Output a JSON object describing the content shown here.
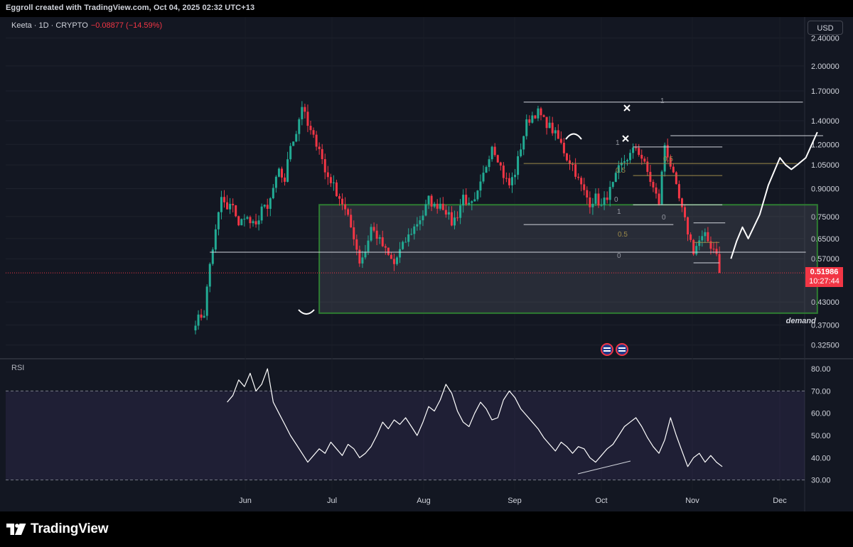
{
  "header": {
    "credit": "Eggroll created with TradingView.com, Oct 04, 2025 02:32 UTC+13"
  },
  "legend": {
    "symbol": "Keeta · 1D · CRYPTO",
    "change": "−0.08877 (−14.59%)"
  },
  "currency_button": "USD",
  "rsi_label": "RSI",
  "brand": {
    "name": "TradingView"
  },
  "colors": {
    "up": "#22ab94",
    "down": "#f23645",
    "background": "#131722",
    "demand_border": "#2e7d32",
    "fib_gold": "#9c8a4a"
  },
  "last_price": {
    "value": "0.51986",
    "countdown": "10:27:44"
  },
  "annotations": {
    "demand": "demand",
    "fib_labels": [
      {
        "text": "1"
      },
      {
        "text": "1"
      },
      {
        "text": "0.5"
      },
      {
        "text": "0.5"
      },
      {
        "text": "0"
      },
      {
        "text": "1"
      },
      {
        "text": "0"
      },
      {
        "text": "0.5"
      },
      {
        "text": "0"
      }
    ]
  },
  "chart_data": [
    {
      "type": "candlestick",
      "title": "",
      "scale": "log",
      "x_ticks": [
        "Jun",
        "Jul",
        "Aug",
        "Sep",
        "Oct",
        "Nov",
        "Dec"
      ],
      "y_ticks": [
        "2.40000",
        "2.00000",
        "1.70000",
        "1.40000",
        "1.20000",
        "1.05000",
        "0.90000",
        "0.75000",
        "0.65000",
        "0.57000",
        "0.43000",
        "0.37000",
        "0.32500"
      ],
      "y_tick_values": [
        2.4,
        2.0,
        1.7,
        1.4,
        1.2,
        1.05,
        0.9,
        0.75,
        0.65,
        0.57,
        0.43,
        0.37,
        0.325
      ],
      "ylim": [
        0.3,
        2.75
      ],
      "close_path": [
        [
          0,
          0.38
        ],
        [
          3,
          0.4
        ],
        [
          5,
          0.55
        ],
        [
          7,
          0.68
        ],
        [
          9,
          0.85
        ],
        [
          11,
          0.78
        ],
        [
          13,
          0.82
        ],
        [
          15,
          0.7
        ],
        [
          17,
          0.76
        ],
        [
          19,
          0.72
        ],
        [
          21,
          0.7
        ],
        [
          23,
          0.8
        ],
        [
          25,
          0.78
        ],
        [
          27,
          0.9
        ],
        [
          29,
          1.0
        ],
        [
          31,
          0.95
        ],
        [
          33,
          1.2
        ],
        [
          35,
          1.3
        ],
        [
          37,
          1.55
        ],
        [
          39,
          1.35
        ],
        [
          41,
          1.25
        ],
        [
          43,
          1.18
        ],
        [
          45,
          1.0
        ],
        [
          47,
          0.95
        ],
        [
          49,
          0.88
        ],
        [
          51,
          0.82
        ],
        [
          53,
          0.74
        ],
        [
          55,
          0.66
        ],
        [
          57,
          0.56
        ],
        [
          59,
          0.6
        ],
        [
          61,
          0.7
        ],
        [
          63,
          0.66
        ],
        [
          65,
          0.62
        ],
        [
          67,
          0.58
        ],
        [
          69,
          0.55
        ],
        [
          71,
          0.6
        ],
        [
          73,
          0.64
        ],
        [
          75,
          0.68
        ],
        [
          77,
          0.72
        ],
        [
          79,
          0.76
        ],
        [
          81,
          0.84
        ],
        [
          83,
          0.8
        ],
        [
          85,
          0.82
        ],
        [
          87,
          0.78
        ],
        [
          89,
          0.72
        ],
        [
          91,
          0.76
        ],
        [
          93,
          0.86
        ],
        [
          95,
          0.8
        ],
        [
          97,
          0.82
        ],
        [
          99,
          0.92
        ],
        [
          101,
          1.05
        ],
        [
          103,
          1.2
        ],
        [
          105,
          1.1
        ],
        [
          107,
          0.98
        ],
        [
          109,
          0.92
        ],
        [
          111,
          1.0
        ],
        [
          113,
          1.18
        ],
        [
          115,
          1.38
        ],
        [
          117,
          1.45
        ],
        [
          119,
          1.48
        ],
        [
          121,
          1.4
        ],
        [
          123,
          1.35
        ],
        [
          125,
          1.28
        ],
        [
          127,
          1.2
        ],
        [
          129,
          1.1
        ],
        [
          131,
          1.05
        ],
        [
          133,
          0.95
        ],
        [
          135,
          0.88
        ],
        [
          137,
          0.82
        ],
        [
          139,
          0.85
        ],
        [
          141,
          0.8
        ],
        [
          143,
          0.86
        ],
        [
          145,
          0.92
        ],
        [
          147,
          1.02
        ],
        [
          149,
          1.08
        ],
        [
          151,
          1.12
        ],
        [
          153,
          1.18
        ],
        [
          155,
          1.1
        ],
        [
          157,
          1.0
        ],
        [
          159,
          0.9
        ],
        [
          161,
          0.82
        ],
        [
          163,
          1.2
        ],
        [
          165,
          1.05
        ],
        [
          167,
          0.9
        ],
        [
          169,
          0.78
        ],
        [
          171,
          0.68
        ],
        [
          173,
          0.6
        ],
        [
          175,
          0.64
        ],
        [
          177,
          0.66
        ],
        [
          179,
          0.62
        ],
        [
          181,
          0.6
        ],
        [
          182,
          0.52
        ]
      ],
      "demand_zone": {
        "x_days": [
          43,
          216
        ],
        "price": [
          0.4,
          0.81
        ]
      },
      "horizontal_lines": [
        {
          "x_days": [
            5,
            212
          ],
          "price": 0.595
        },
        {
          "x_days": [
            114,
            166
          ],
          "price": 0.712
        }
      ],
      "fib_lines": [
        {
          "x_days": [
            114,
            211
          ],
          "price": 1.58,
          "color": "#d1d4dc"
        },
        {
          "x_days": [
            165,
            218
          ],
          "price": 1.27,
          "color": "#d1d4dc"
        },
        {
          "x_days": [
            152,
            183
          ],
          "price": 1.18,
          "color": "#d1d4dc"
        },
        {
          "x_days": [
            114,
            209
          ],
          "price": 1.06,
          "color": "#9c8a4a"
        },
        {
          "x_days": [
            152,
            183
          ],
          "price": 0.98,
          "color": "#9c8a4a"
        },
        {
          "x_days": [
            152,
            183
          ],
          "price": 0.81,
          "color": "#d1d4dc"
        },
        {
          "x_days": [
            173,
            184
          ],
          "price": 0.72,
          "color": "#d1d4dc"
        },
        {
          "x_days": [
            173,
            182
          ],
          "price": 0.634,
          "color": "#9c8a4a"
        },
        {
          "x_days": [
            173,
            182
          ],
          "price": 0.555,
          "color": "#d1d4dc"
        }
      ],
      "projection_path": [
        [
          186,
          0.57
        ],
        [
          188,
          0.64
        ],
        [
          190,
          0.7
        ],
        [
          192,
          0.65
        ],
        [
          196,
          0.76
        ],
        [
          199,
          0.92
        ],
        [
          203,
          1.1
        ],
        [
          205,
          1.05
        ],
        [
          207,
          1.02
        ],
        [
          209,
          1.05
        ],
        [
          212,
          1.1
        ],
        [
          216,
          1.3
        ]
      ],
      "last_price": 0.51986
    },
    {
      "type": "line",
      "title": "RSI",
      "y_ticks": [
        "80.00",
        "70.00",
        "60.00",
        "50.00",
        "40.00",
        "30.00"
      ],
      "y_tick_values": [
        80,
        70,
        60,
        50,
        40,
        30
      ],
      "ylim": [
        25.4,
        84.2
      ],
      "band": [
        30,
        70
      ],
      "x_start_day": 11,
      "values": [
        65,
        68,
        75,
        72,
        78,
        70,
        73,
        80,
        65,
        60,
        55,
        50,
        46,
        42,
        38,
        41,
        44,
        42,
        47,
        44,
        41,
        46,
        44,
        40,
        42,
        45,
        50,
        56,
        53,
        57,
        55,
        58,
        54,
        50,
        56,
        63,
        61,
        66,
        73,
        69,
        61,
        56,
        54,
        60,
        65,
        62,
        57,
        58,
        66,
        70,
        67,
        62,
        59,
        56,
        53,
        49,
        46,
        43,
        47,
        45,
        42,
        45,
        44,
        40,
        38,
        41,
        44,
        46,
        50,
        54,
        56,
        58,
        54,
        49,
        45,
        42,
        48,
        58,
        50,
        43,
        36,
        40,
        42,
        38,
        41,
        38,
        36
      ]
    }
  ]
}
